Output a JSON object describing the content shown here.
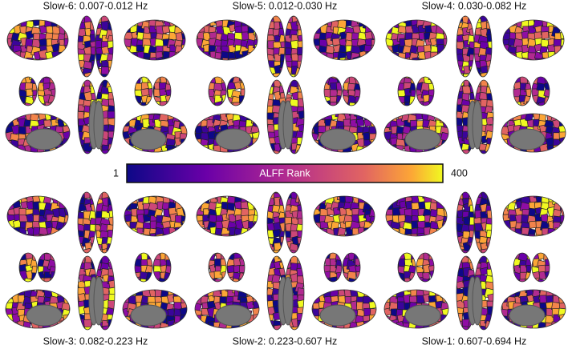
{
  "panels": [
    {
      "title": "Slow-6: 0.007-0.012 Hz"
    },
    {
      "title": "Slow-5: 0.012-0.030 Hz"
    },
    {
      "title": "Slow-4: 0.030-0.082 Hz"
    },
    {
      "title": "Slow-3: 0.082-0.223 Hz"
    },
    {
      "title": "Slow-2: 0.223-0.607 Hz"
    },
    {
      "title": "Slow-1: 0.607-0.694 Hz"
    }
  ],
  "colorbar": {
    "min_label": "1",
    "max_label": "400",
    "label": "ALFF Rank"
  }
}
